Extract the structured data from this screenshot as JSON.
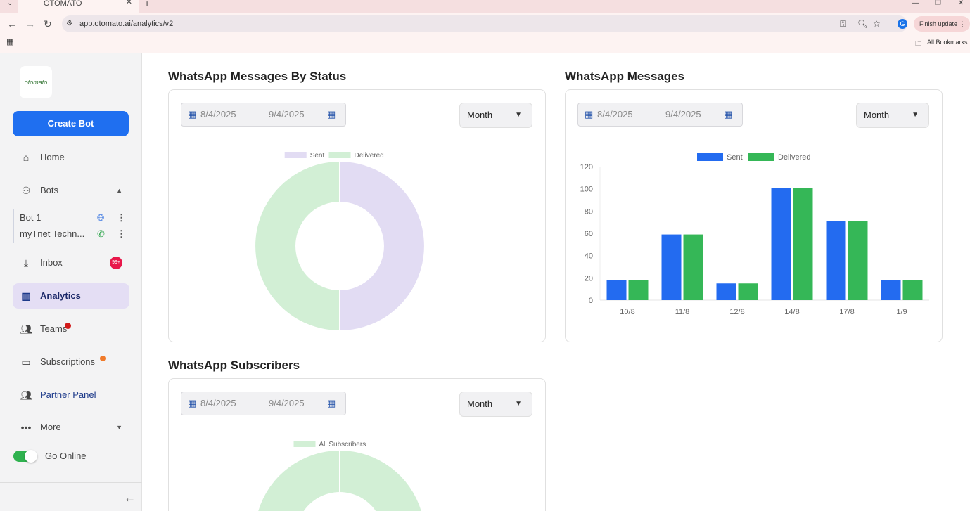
{
  "browser": {
    "tab_title": "OTOMATO",
    "url": "app.otomato.ai/analytics/v2",
    "finish_update": "Finish update",
    "all_bookmarks": "All Bookmarks",
    "profile_initial": "G"
  },
  "sidebar": {
    "logo": "otomato",
    "create_bot": "Create Bot",
    "home": "Home",
    "bots": "Bots",
    "bot_list": [
      {
        "name": "Bot 1",
        "channel": "globe-icon"
      },
      {
        "name": "myTnet Techn...",
        "channel": "whatsapp-icon"
      }
    ],
    "inbox": "Inbox",
    "inbox_badge": "99+",
    "analytics": "Analytics",
    "teams": "Teams",
    "subscriptions": "Subscriptions",
    "partner_panel": "Partner Panel",
    "more": "More",
    "go_online": "Go Online",
    "go_online_state": true
  },
  "cards": [
    {
      "title": "WhatsApp Messages By Status",
      "date_from": "8/4/2025",
      "date_to": "9/4/2025",
      "period": "Month"
    },
    {
      "title": "WhatsApp Messages",
      "date_from": "8/4/2025",
      "date_to": "9/4/2025",
      "period": "Month"
    },
    {
      "title": "WhatsApp Subscribers",
      "date_from": "8/4/2025",
      "date_to": "9/4/2025",
      "period": "Month"
    }
  ],
  "chart_data": [
    {
      "type": "pie",
      "variant": "doughnut",
      "labels": [
        "Sent",
        "Delivered"
      ],
      "values": [
        50,
        50
      ],
      "colors": [
        "#e2dcf3",
        "#d2efd5"
      ],
      "legend": "top"
    },
    {
      "type": "bar",
      "categories": [
        "10/8",
        "11/8",
        "12/8",
        "14/8",
        "17/8",
        "1/9"
      ],
      "series": [
        {
          "name": "Sent",
          "values": [
            18,
            59,
            15,
            101,
            71,
            18
          ],
          "color": "#236bf0"
        },
        {
          "name": "Delivered",
          "values": [
            18,
            59,
            15,
            101,
            71,
            18
          ],
          "color": "#35b757"
        }
      ],
      "ylim": [
        0,
        120
      ],
      "yticks": [
        0,
        20,
        40,
        60,
        80,
        100,
        120
      ],
      "legend": "top",
      "grid": false
    },
    {
      "type": "pie",
      "variant": "doughnut",
      "labels": [
        "All Subscribers"
      ],
      "values": [
        100
      ],
      "colors": [
        "#d2efd5"
      ],
      "legend": "top"
    }
  ]
}
